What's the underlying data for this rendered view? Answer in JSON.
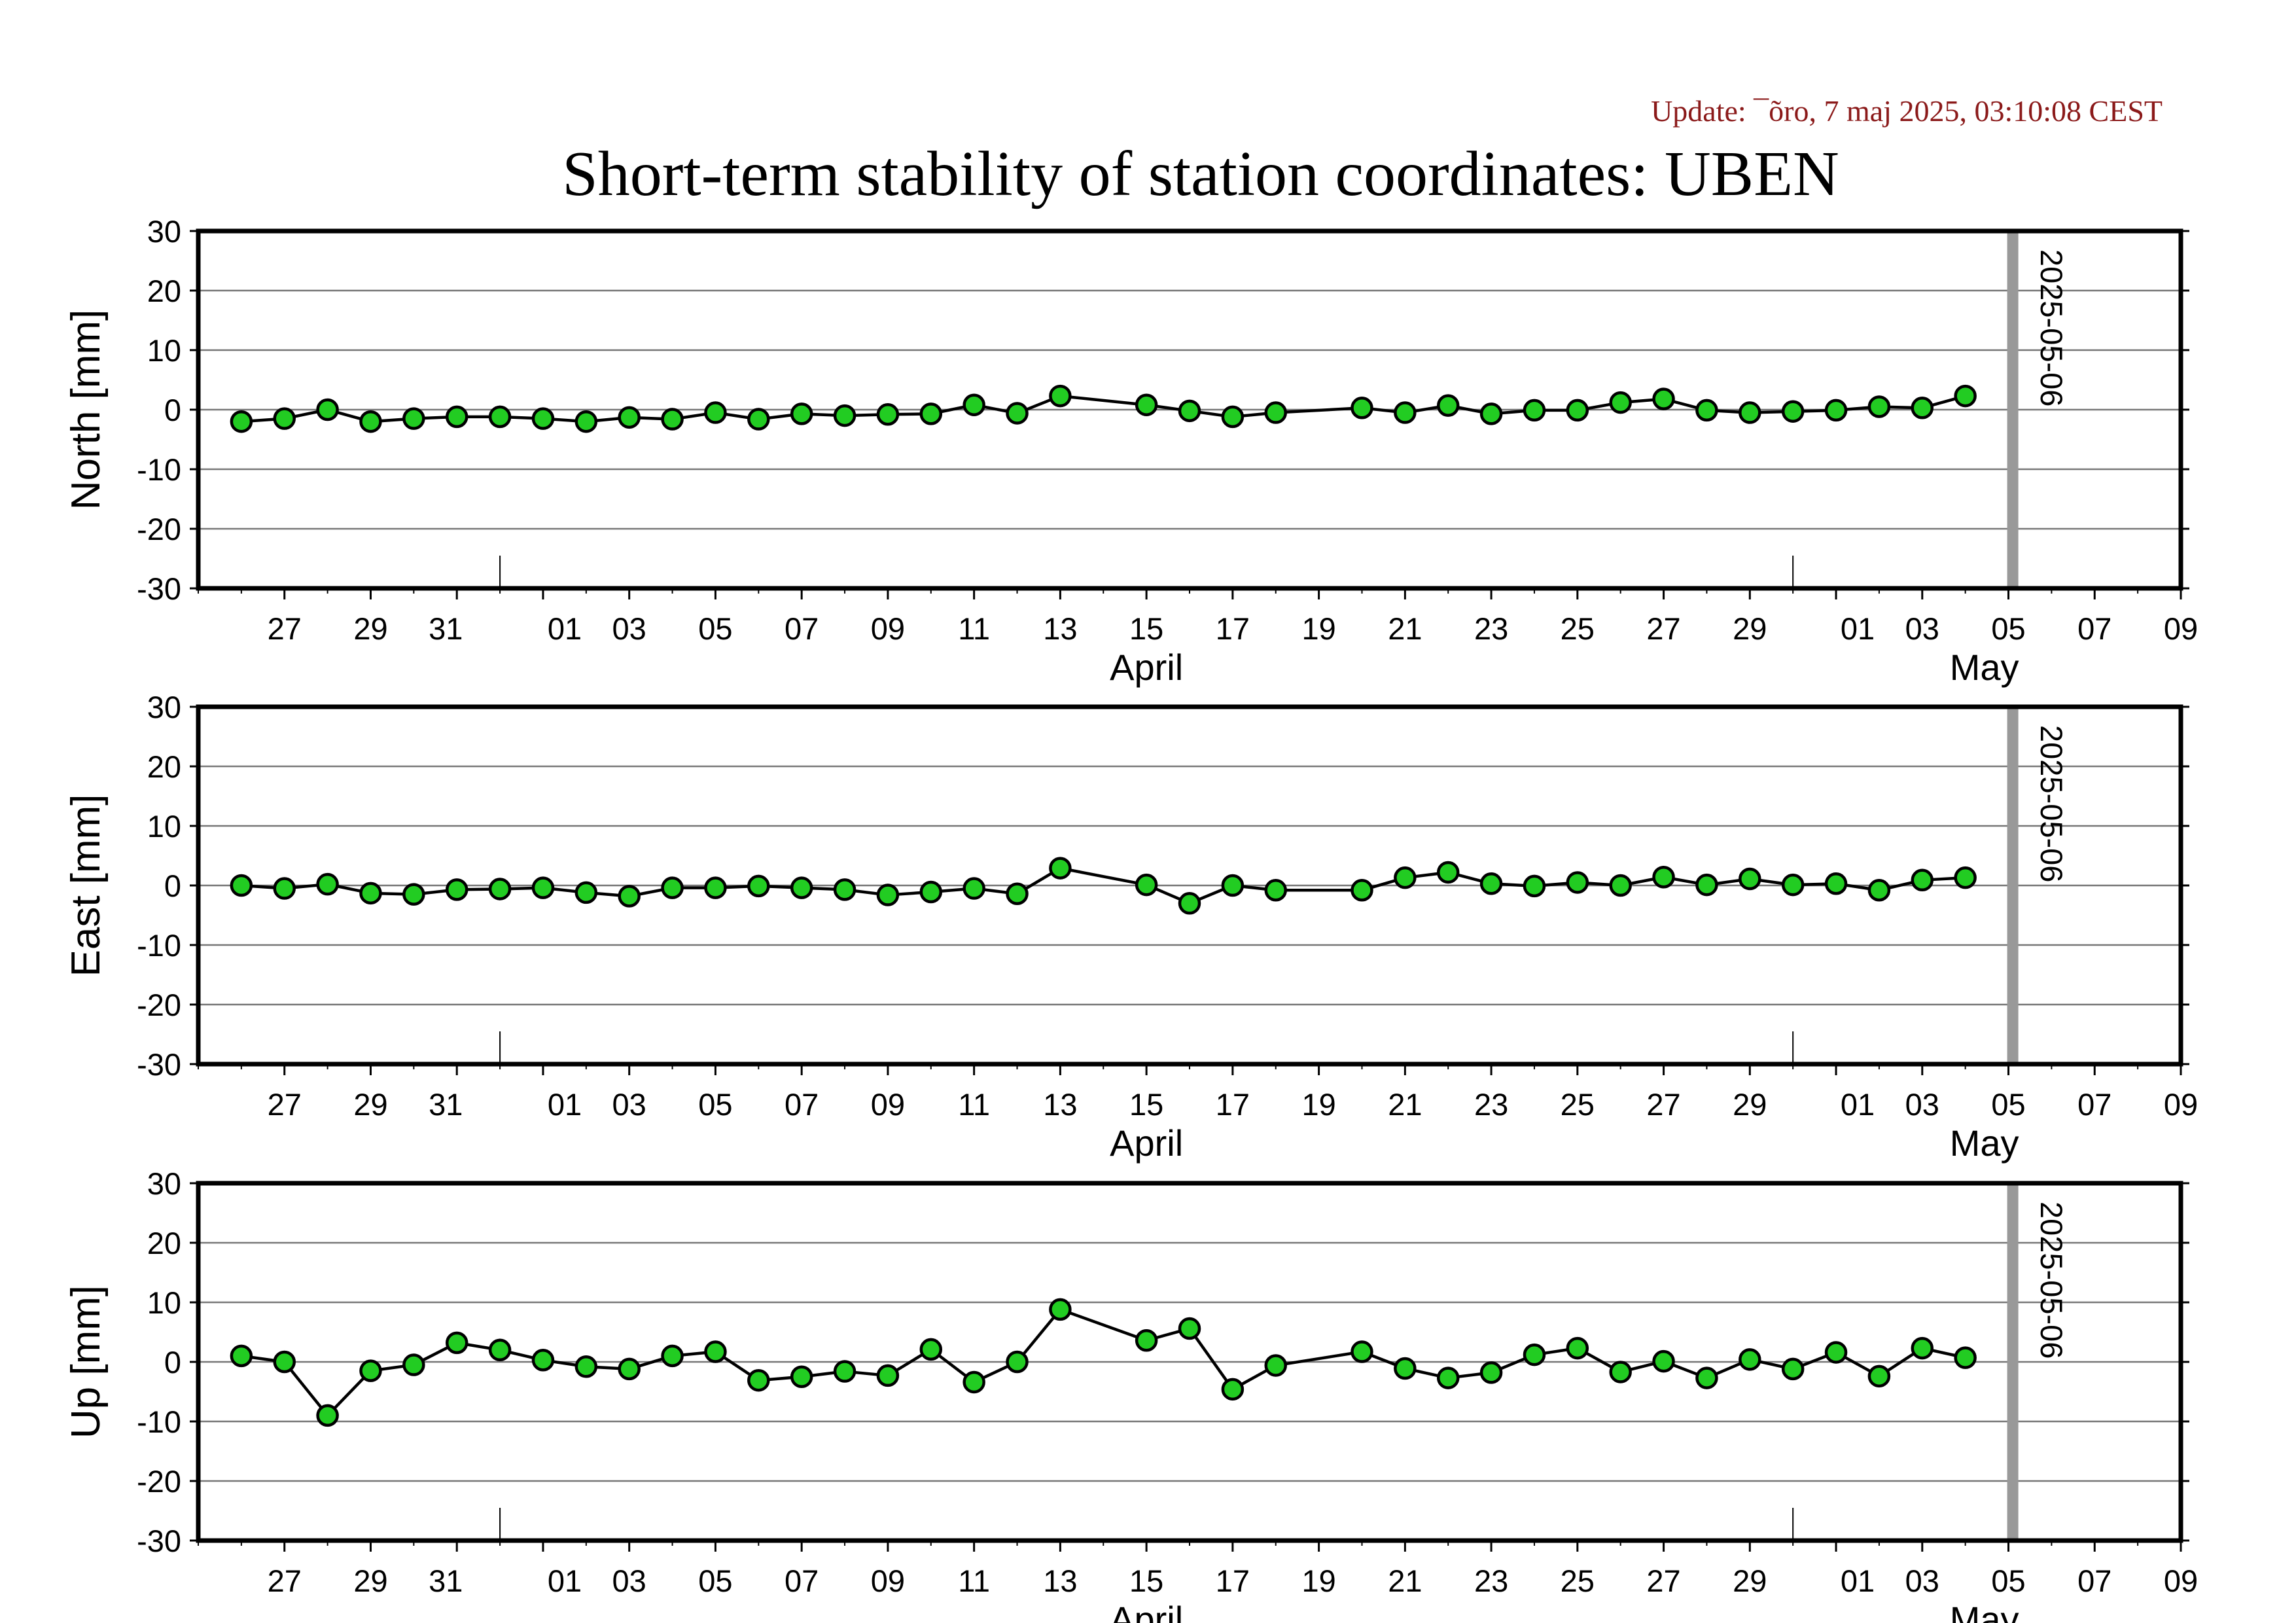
{
  "header": {
    "update": "Update: ¯õro, 7 maj 2025, 03:10:08 CEST",
    "title": "Short-term stability of station coordinates: UBEN"
  },
  "colors": {
    "marker_fill": "#22cc22",
    "marker_stroke": "#000000",
    "line": "#000000",
    "grid": "#777777",
    "current_day_bar": "#999999",
    "update_text": "#8b1a1a"
  },
  "chart_data": [
    {
      "type": "line",
      "ylabel": "North [mm]",
      "ylim": [
        -30,
        30
      ],
      "yticks": [
        30,
        20,
        10,
        0,
        -10,
        -20,
        -30
      ],
      "grid": true,
      "x_axis": {
        "start_date": "2025-03-25",
        "end_date": "2025-05-10",
        "tick_labels": [
          "27",
          "29",
          "31",
          "01",
          "03",
          "05",
          "07",
          "09",
          "11",
          "13",
          "15",
          "17",
          "19",
          "21",
          "23",
          "25",
          "27",
          "29",
          "01",
          "03",
          "05",
          "07",
          "09"
        ],
        "months": [
          "April",
          "May"
        ]
      },
      "marker": {
        "date": "2025-05-06",
        "label": "2025-05-06"
      },
      "x": [
        "2025-03-26",
        "2025-03-27",
        "2025-03-28",
        "2025-03-29",
        "2025-03-30",
        "2025-03-31",
        "2025-04-01",
        "2025-04-02",
        "2025-04-03",
        "2025-04-04",
        "2025-04-05",
        "2025-04-06",
        "2025-04-07",
        "2025-04-08",
        "2025-04-09",
        "2025-04-10",
        "2025-04-11",
        "2025-04-12",
        "2025-04-13",
        "2025-04-14",
        "2025-04-16",
        "2025-04-17",
        "2025-04-18",
        "2025-04-19",
        "2025-04-21",
        "2025-04-22",
        "2025-04-23",
        "2025-04-24",
        "2025-04-25",
        "2025-04-26",
        "2025-04-27",
        "2025-04-28",
        "2025-04-29",
        "2025-04-30",
        "2025-05-01",
        "2025-05-02",
        "2025-05-03",
        "2025-05-04",
        "2025-05-05"
      ],
      "values": [
        -2,
        -1.5,
        0,
        -2,
        -1.5,
        -1.2,
        -1.2,
        -1.5,
        -2,
        -1.3,
        -1.6,
        -0.5,
        -1.6,
        -0.7,
        -1,
        -0.8,
        -0.7,
        0.8,
        -0.6,
        2.3,
        0.8,
        -0.2,
        -1.2,
        -0.5,
        0.3,
        -0.5,
        0.7,
        -0.7,
        -0.1,
        -0.1,
        1.2,
        1.8,
        -0.1,
        -0.5,
        -0.3,
        -0.1,
        0.5,
        0.3,
        2.3
      ]
    },
    {
      "type": "line",
      "ylabel": "East [mm]",
      "ylim": [
        -30,
        30
      ],
      "yticks": [
        30,
        20,
        10,
        0,
        -10,
        -20,
        -30
      ],
      "grid": true,
      "x_axis": {
        "start_date": "2025-03-25",
        "end_date": "2025-05-10",
        "tick_labels": [
          "27",
          "29",
          "31",
          "01",
          "03",
          "05",
          "07",
          "09",
          "11",
          "13",
          "15",
          "17",
          "19",
          "21",
          "23",
          "25",
          "27",
          "29",
          "01",
          "03",
          "05",
          "07",
          "09"
        ],
        "months": [
          "April",
          "May"
        ]
      },
      "marker": {
        "date": "2025-05-06",
        "label": "2025-05-06"
      },
      "x": [
        "2025-03-26",
        "2025-03-27",
        "2025-03-28",
        "2025-03-29",
        "2025-03-30",
        "2025-03-31",
        "2025-04-01",
        "2025-04-02",
        "2025-04-03",
        "2025-04-04",
        "2025-04-05",
        "2025-04-06",
        "2025-04-07",
        "2025-04-08",
        "2025-04-09",
        "2025-04-10",
        "2025-04-11",
        "2025-04-12",
        "2025-04-13",
        "2025-04-14",
        "2025-04-16",
        "2025-04-17",
        "2025-04-18",
        "2025-04-19",
        "2025-04-21",
        "2025-04-22",
        "2025-04-23",
        "2025-04-24",
        "2025-04-25",
        "2025-04-26",
        "2025-04-27",
        "2025-04-28",
        "2025-04-29",
        "2025-04-30",
        "2025-05-01",
        "2025-05-02",
        "2025-05-03",
        "2025-05-04",
        "2025-05-05"
      ],
      "values": [
        0,
        -0.5,
        0.2,
        -1.3,
        -1.5,
        -0.7,
        -0.6,
        -0.4,
        -1.2,
        -1.8,
        -0.4,
        -0.4,
        -0.1,
        -0.4,
        -0.7,
        -1.6,
        -1.1,
        -0.5,
        -1.4,
        2.9,
        0.1,
        -3,
        0,
        -0.8,
        -0.8,
        1.3,
        2.2,
        0.3,
        -0.1,
        0.5,
        0,
        1.4,
        0.1,
        1.1,
        0.1,
        0.3,
        -0.8,
        0.9,
        1.3
      ]
    },
    {
      "type": "line",
      "ylabel": "Up [mm]",
      "ylim": [
        -30,
        30
      ],
      "yticks": [
        30,
        20,
        10,
        0,
        -10,
        -20,
        -30
      ],
      "grid": true,
      "x_axis": {
        "start_date": "2025-03-25",
        "end_date": "2025-05-10",
        "tick_labels": [
          "27",
          "29",
          "31",
          "01",
          "03",
          "05",
          "07",
          "09",
          "11",
          "13",
          "15",
          "17",
          "19",
          "21",
          "23",
          "25",
          "27",
          "29",
          "01",
          "03",
          "05",
          "07",
          "09"
        ],
        "months": [
          "April",
          "May"
        ]
      },
      "marker": {
        "date": "2025-05-06",
        "label": "2025-05-06"
      },
      "x": [
        "2025-03-26",
        "2025-03-27",
        "2025-03-28",
        "2025-03-29",
        "2025-03-30",
        "2025-03-31",
        "2025-04-01",
        "2025-04-02",
        "2025-04-03",
        "2025-04-04",
        "2025-04-05",
        "2025-04-06",
        "2025-04-07",
        "2025-04-08",
        "2025-04-09",
        "2025-04-10",
        "2025-04-11",
        "2025-04-12",
        "2025-04-13",
        "2025-04-14",
        "2025-04-16",
        "2025-04-17",
        "2025-04-18",
        "2025-04-19",
        "2025-04-21",
        "2025-04-22",
        "2025-04-23",
        "2025-04-24",
        "2025-04-25",
        "2025-04-26",
        "2025-04-27",
        "2025-04-28",
        "2025-04-29",
        "2025-04-30",
        "2025-05-01",
        "2025-05-02",
        "2025-05-03",
        "2025-05-04",
        "2025-05-05"
      ],
      "values": [
        1,
        0,
        -9,
        -1.5,
        -0.5,
        3.2,
        2,
        0.3,
        -0.8,
        -1.2,
        1,
        1.7,
        -3.1,
        -2.5,
        -1.6,
        -2.3,
        2.1,
        -3.4,
        0,
        8.8,
        3.6,
        5.6,
        -4.6,
        -0.6,
        1.7,
        -1.1,
        -2.7,
        -1.8,
        1.2,
        2.3,
        -1.7,
        0.1,
        -2.7,
        0.4,
        -1.2,
        1.6,
        -2.4,
        2.3,
        0.7
      ]
    }
  ]
}
